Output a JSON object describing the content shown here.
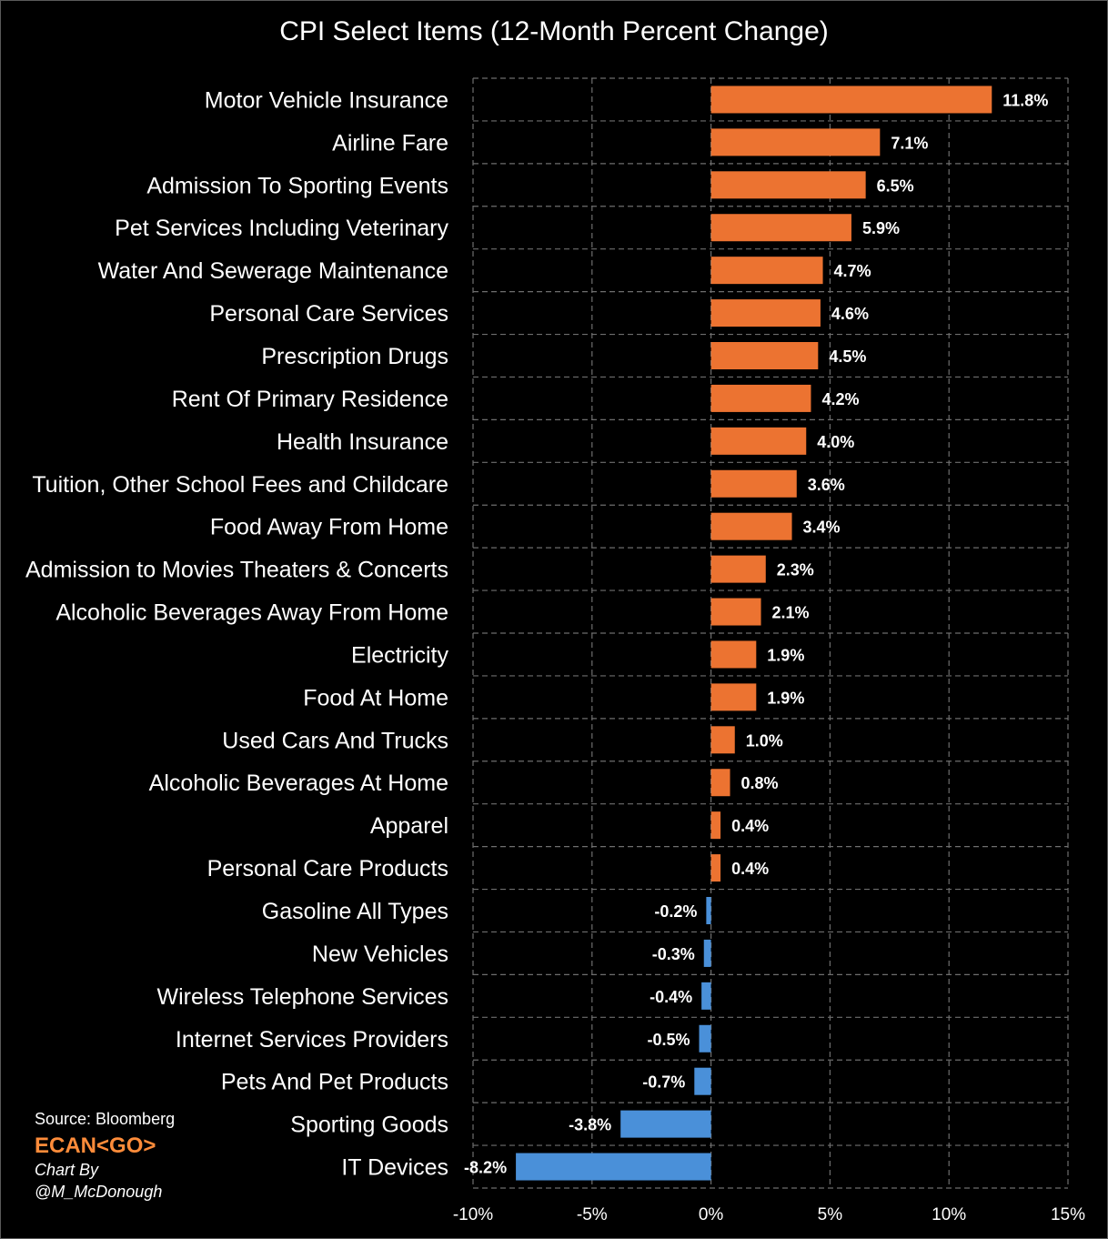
{
  "colors": {
    "positive": "#ec7331",
    "negative": "#4a90d9",
    "grid": "#6e6e6e",
    "background": "#000000",
    "brand": "#ff8c3a"
  },
  "credits": {
    "source": "Source: Bloomberg",
    "brand": "ECAN<GO>",
    "byline_1": "Chart By",
    "byline_2": "@M_McDonough"
  },
  "chart_data": {
    "type": "bar",
    "orientation": "horizontal",
    "title": "CPI Select Items (12-Month Percent Change)",
    "xlim": [
      -10,
      15
    ],
    "ticks": [
      -10,
      -5,
      0,
      5,
      10,
      15
    ],
    "tick_labels": [
      "-10%",
      "-5%",
      "0%",
      "5%",
      "10%",
      "15%"
    ],
    "grid": true,
    "categories": [
      "Motor Vehicle Insurance",
      "Airline Fare",
      "Admission To Sporting Events",
      "Pet Services Including Veterinary",
      "Water And Sewerage Maintenance",
      "Personal Care Services",
      "Prescription Drugs",
      "Rent Of Primary Residence",
      "Health Insurance",
      "Tuition, Other School Fees and Childcare",
      "Food Away From Home",
      "Admission to Movies Theaters & Concerts",
      "Alcoholic Beverages Away From Home",
      "Electricity",
      "Food At Home",
      "Used Cars And Trucks",
      "Alcoholic Beverages At Home",
      "Apparel",
      "Personal Care Products",
      "Gasoline All Types",
      "New Vehicles",
      "Wireless Telephone Services",
      "Internet Services Providers",
      "Pets And Pet Products",
      "Sporting Goods",
      "IT Devices"
    ],
    "values": [
      11.8,
      7.1,
      6.5,
      5.9,
      4.7,
      4.6,
      4.5,
      4.2,
      4.0,
      3.6,
      3.4,
      2.3,
      2.1,
      1.9,
      1.9,
      1.0,
      0.8,
      0.4,
      0.4,
      -0.2,
      -0.3,
      -0.4,
      -0.5,
      -0.7,
      -3.8,
      -8.2
    ],
    "value_labels": [
      "11.8%",
      "7.1%",
      "6.5%",
      "5.9%",
      "4.7%",
      "4.6%",
      "4.5%",
      "4.2%",
      "4.0%",
      "3.6%",
      "3.4%",
      "2.3%",
      "2.1%",
      "1.9%",
      "1.9%",
      "1.0%",
      "0.8%",
      "0.4%",
      "0.4%",
      "-0.2%",
      "-0.3%",
      "-0.4%",
      "-0.5%",
      "-0.7%",
      "-3.8%",
      "-8.2%"
    ]
  }
}
